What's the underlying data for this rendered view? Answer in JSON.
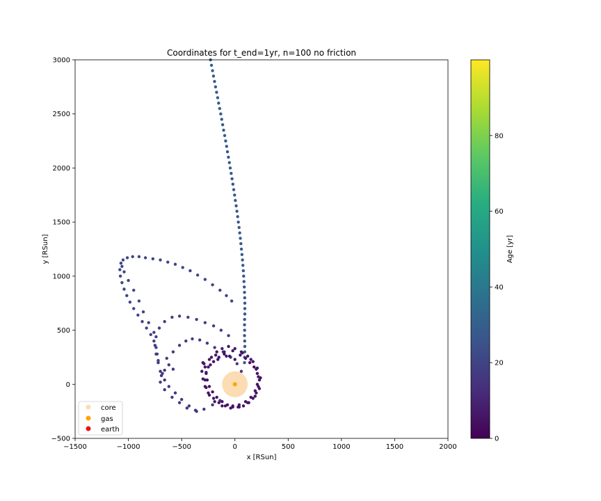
{
  "chart_data": {
    "type": "scatter",
    "title": "Coordinates for t_end=1yr, n=100 no friction",
    "xlabel": "x [RSun]",
    "ylabel": "y [RSun]",
    "xlim": [
      -1500,
      2000
    ],
    "ylim": [
      -500,
      3000
    ],
    "xticks": [
      -1500,
      -1000,
      -500,
      0,
      500,
      1000,
      1500,
      2000
    ],
    "yticks": [
      -500,
      0,
      500,
      1000,
      1500,
      2000,
      2500,
      3000
    ],
    "grid": false,
    "legend": {
      "placement": "lower-left",
      "entries": [
        {
          "label": "core",
          "color": "#fcdcb3"
        },
        {
          "label": "gas",
          "color": "#ffa500"
        },
        {
          "label": "earth",
          "color": "#e8141b"
        }
      ]
    },
    "colorbar": {
      "label": "Age [yr]",
      "min": 0,
      "max": 100,
      "ticks": [
        0,
        20,
        40,
        60,
        80
      ],
      "colormap": "viridis"
    },
    "markers": {
      "core": {
        "x": 0,
        "y": 0,
        "radius": 120,
        "color": "#fcdcb3"
      },
      "gas": {
        "x": 0,
        "y": 0,
        "color": "#ffa500"
      }
    },
    "trajectory": {
      "name": "earth",
      "points": [
        [
          -229,
          3000,
          29
        ],
        [
          -220,
          2950,
          29
        ],
        [
          -210,
          2900,
          29
        ],
        [
          -201,
          2850,
          29
        ],
        [
          -191,
          2800,
          29
        ],
        [
          -182,
          2750,
          29
        ],
        [
          -172,
          2700,
          29
        ],
        [
          -162,
          2650,
          29
        ],
        [
          -153,
          2600,
          29
        ],
        [
          -143,
          2550,
          29
        ],
        [
          -133,
          2500,
          29
        ],
        [
          -124,
          2450,
          29
        ],
        [
          -115,
          2400,
          29
        ],
        [
          -106,
          2350,
          29
        ],
        [
          -96,
          2300,
          29
        ],
        [
          -87,
          2250,
          29
        ],
        [
          -78,
          2200,
          29
        ],
        [
          -70,
          2150,
          28
        ],
        [
          -61,
          2100,
          28
        ],
        [
          -52,
          2050,
          28
        ],
        [
          -44,
          2000,
          28
        ],
        [
          -35,
          1950,
          28
        ],
        [
          -27,
          1900,
          28
        ],
        [
          -19,
          1850,
          28
        ],
        [
          -11,
          1800,
          28
        ],
        [
          -3,
          1750,
          28
        ],
        [
          4,
          1700,
          28
        ],
        [
          12,
          1650,
          28
        ],
        [
          19,
          1600,
          28
        ],
        [
          26,
          1550,
          28
        ],
        [
          32,
          1500,
          28
        ],
        [
          39,
          1450,
          28
        ],
        [
          45,
          1400,
          28
        ],
        [
          51,
          1350,
          28
        ],
        [
          56,
          1300,
          28
        ],
        [
          61,
          1250,
          28
        ],
        [
          66,
          1200,
          28
        ],
        [
          71,
          1150,
          28
        ],
        [
          75,
          1100,
          28
        ],
        [
          79,
          1050,
          28
        ],
        [
          82,
          1000,
          27
        ],
        [
          85,
          950,
          27
        ],
        [
          88,
          900,
          27
        ],
        [
          90,
          850,
          27
        ],
        [
          92,
          800,
          27
        ],
        [
          93,
          750,
          27
        ],
        [
          93,
          700,
          27
        ],
        [
          93,
          650,
          27
        ],
        [
          91,
          600,
          27
        ],
        [
          90,
          550,
          27
        ],
        [
          91,
          500,
          27
        ],
        [
          90,
          450,
          27
        ],
        [
          92,
          400,
          27
        ],
        [
          93,
          350,
          27
        ],
        [
          92,
          300,
          27
        ],
        [
          91,
          250,
          27
        ],
        [
          90,
          200,
          27
        ],
        [
          -580,
          140,
          15
        ],
        [
          -620,
          180,
          16
        ],
        [
          -660,
          130,
          16
        ],
        [
          -690,
          80,
          16
        ],
        [
          -700,
          20,
          16
        ],
        [
          -660,
          -50,
          16
        ],
        [
          -590,
          -120,
          16
        ],
        [
          -520,
          -170,
          16
        ],
        [
          -450,
          -220,
          16
        ],
        [
          -370,
          -240,
          16
        ],
        [
          -290,
          -230,
          16
        ],
        [
          -210,
          -190,
          16
        ],
        [
          -140,
          -150,
          16
        ],
        [
          -360,
          -250,
          16
        ],
        [
          -430,
          -200,
          16
        ],
        [
          -500,
          -140,
          16
        ],
        [
          -560,
          -80,
          16
        ],
        [
          -620,
          -20,
          16
        ],
        [
          -660,
          40,
          16
        ],
        [
          -700,
          120,
          16
        ],
        [
          -720,
          200,
          16
        ],
        [
          -740,
          280,
          17
        ],
        [
          -750,
          360,
          17
        ],
        [
          -740,
          440,
          18
        ],
        [
          -710,
          520,
          18
        ],
        [
          -660,
          580,
          19
        ],
        [
          -590,
          620,
          19
        ],
        [
          -520,
          630,
          19
        ],
        [
          -440,
          620,
          19
        ],
        [
          -360,
          600,
          19
        ],
        [
          -280,
          570,
          19
        ],
        [
          -200,
          540,
          19
        ],
        [
          -130,
          500,
          19
        ],
        [
          -60,
          450,
          19
        ],
        [
          -680,
          100,
          17
        ],
        [
          -640,
          240,
          18
        ],
        [
          -580,
          300,
          18
        ],
        [
          -520,
          360,
          18
        ],
        [
          -460,
          400,
          18
        ],
        [
          -400,
          420,
          18
        ],
        [
          -330,
          410,
          18
        ],
        [
          -260,
          380,
          18
        ],
        [
          -190,
          340,
          18
        ],
        [
          -110,
          300,
          18
        ],
        [
          -40,
          250,
          18
        ],
        [
          20,
          190,
          18
        ],
        [
          60,
          120,
          18
        ],
        [
          -760,
          480,
          20
        ],
        [
          -810,
          570,
          20
        ],
        [
          -860,
          670,
          21
        ],
        [
          -900,
          770,
          21
        ],
        [
          -950,
          870,
          21
        ],
        [
          -1000,
          960,
          21
        ],
        [
          -1040,
          1040,
          21
        ],
        [
          -1060,
          1090,
          21
        ],
        [
          -1070,
          1120,
          21
        ],
        [
          -1050,
          1150,
          21
        ],
        [
          -1010,
          1170,
          21
        ],
        [
          -960,
          1180,
          21
        ],
        [
          -900,
          1180,
          21
        ],
        [
          -840,
          1170,
          21
        ],
        [
          -770,
          1160,
          21
        ],
        [
          -700,
          1150,
          21
        ],
        [
          -630,
          1130,
          21
        ],
        [
          -560,
          1110,
          21
        ],
        [
          -490,
          1080,
          21
        ],
        [
          -420,
          1050,
          21
        ],
        [
          -350,
          1010,
          21
        ],
        [
          -280,
          970,
          21
        ],
        [
          -210,
          920,
          21
        ],
        [
          -140,
          870,
          21
        ],
        [
          -80,
          820,
          21
        ],
        [
          -30,
          770,
          21
        ],
        [
          -1080,
          1060,
          21
        ],
        [
          -1075,
          1000,
          21
        ],
        [
          -1060,
          940,
          21
        ],
        [
          -1040,
          880,
          21
        ],
        [
          -1015,
          820,
          21
        ],
        [
          -985,
          760,
          21
        ],
        [
          -950,
          700,
          21
        ],
        [
          -910,
          640,
          21
        ],
        [
          -870,
          580,
          21
        ],
        [
          -830,
          520,
          21
        ],
        [
          -790,
          460,
          20
        ],
        [
          -760,
          400,
          20
        ],
        [
          -740,
          340,
          20
        ],
        [
          -730,
          280,
          20
        ],
        [
          -720,
          220,
          20
        ],
        [
          -300,
          200,
          5
        ],
        [
          -250,
          160,
          5
        ],
        [
          -200,
          210,
          5
        ],
        [
          -150,
          250,
          5
        ],
        [
          -100,
          280,
          5
        ],
        [
          -50,
          260,
          5
        ],
        [
          0,
          230,
          5
        ],
        [
          50,
          270,
          5
        ],
        [
          100,
          240,
          5
        ],
        [
          140,
          200,
          5
        ],
        [
          180,
          160,
          5
        ],
        [
          210,
          100,
          5
        ],
        [
          230,
          40,
          5
        ],
        [
          220,
          -20,
          5
        ],
        [
          200,
          -80,
          5
        ],
        [
          170,
          -130,
          5
        ],
        [
          130,
          -170,
          5
        ],
        [
          80,
          -200,
          5
        ],
        [
          30,
          -210,
          5
        ],
        [
          -20,
          -200,
          5
        ],
        [
          -70,
          -190,
          5
        ],
        [
          -120,
          -160,
          5
        ],
        [
          -170,
          -120,
          5
        ],
        [
          -210,
          -70,
          5
        ],
        [
          -240,
          -20,
          5
        ],
        [
          -260,
          40,
          5
        ],
        [
          -270,
          100,
          5
        ],
        [
          -280,
          160,
          5
        ],
        [
          -220,
          250,
          6
        ],
        [
          -170,
          300,
          6
        ],
        [
          -120,
          330,
          6
        ],
        [
          -60,
          350,
          6
        ],
        [
          0,
          330,
          6
        ],
        [
          60,
          300,
          6
        ],
        [
          120,
          260,
          6
        ],
        [
          170,
          210,
          6
        ],
        [
          200,
          140,
          6
        ],
        [
          220,
          70,
          6
        ],
        [
          210,
          0,
          6
        ],
        [
          190,
          -60,
          6
        ],
        [
          150,
          -120,
          6
        ],
        [
          100,
          -160,
          6
        ],
        [
          40,
          -190,
          6
        ],
        [
          -20,
          -210,
          6
        ],
        [
          -90,
          -200,
          6
        ],
        [
          -150,
          -170,
          6
        ],
        [
          -200,
          -130,
          6
        ],
        [
          -250,
          -80,
          6
        ],
        [
          -280,
          -20,
          6
        ],
        [
          -300,
          50,
          6
        ],
        [
          -310,
          120,
          6
        ],
        [
          -290,
          190,
          6
        ],
        [
          -240,
          230,
          6
        ],
        [
          -180,
          270,
          6
        ],
        [
          -100,
          300,
          6
        ],
        [
          -20,
          310,
          6
        ],
        [
          70,
          290,
          6
        ],
        [
          150,
          230,
          6
        ],
        [
          210,
          150,
          6
        ],
        [
          240,
          60,
          6
        ],
        [
          230,
          -40,
          6
        ],
        [
          190,
          -110,
          6
        ],
        [
          120,
          -170,
          6
        ],
        [
          40,
          -210,
          6
        ],
        [
          -40,
          -220,
          6
        ],
        [
          -120,
          -200,
          6
        ],
        [
          -190,
          -160,
          6
        ],
        [
          -240,
          -100,
          6
        ],
        [
          -270,
          -30,
          6
        ],
        [
          -280,
          40,
          6
        ],
        [
          -270,
          110,
          6
        ],
        [
          -230,
          180,
          6
        ],
        [
          -160,
          230,
          6
        ],
        [
          -80,
          260,
          6
        ]
      ]
    }
  }
}
